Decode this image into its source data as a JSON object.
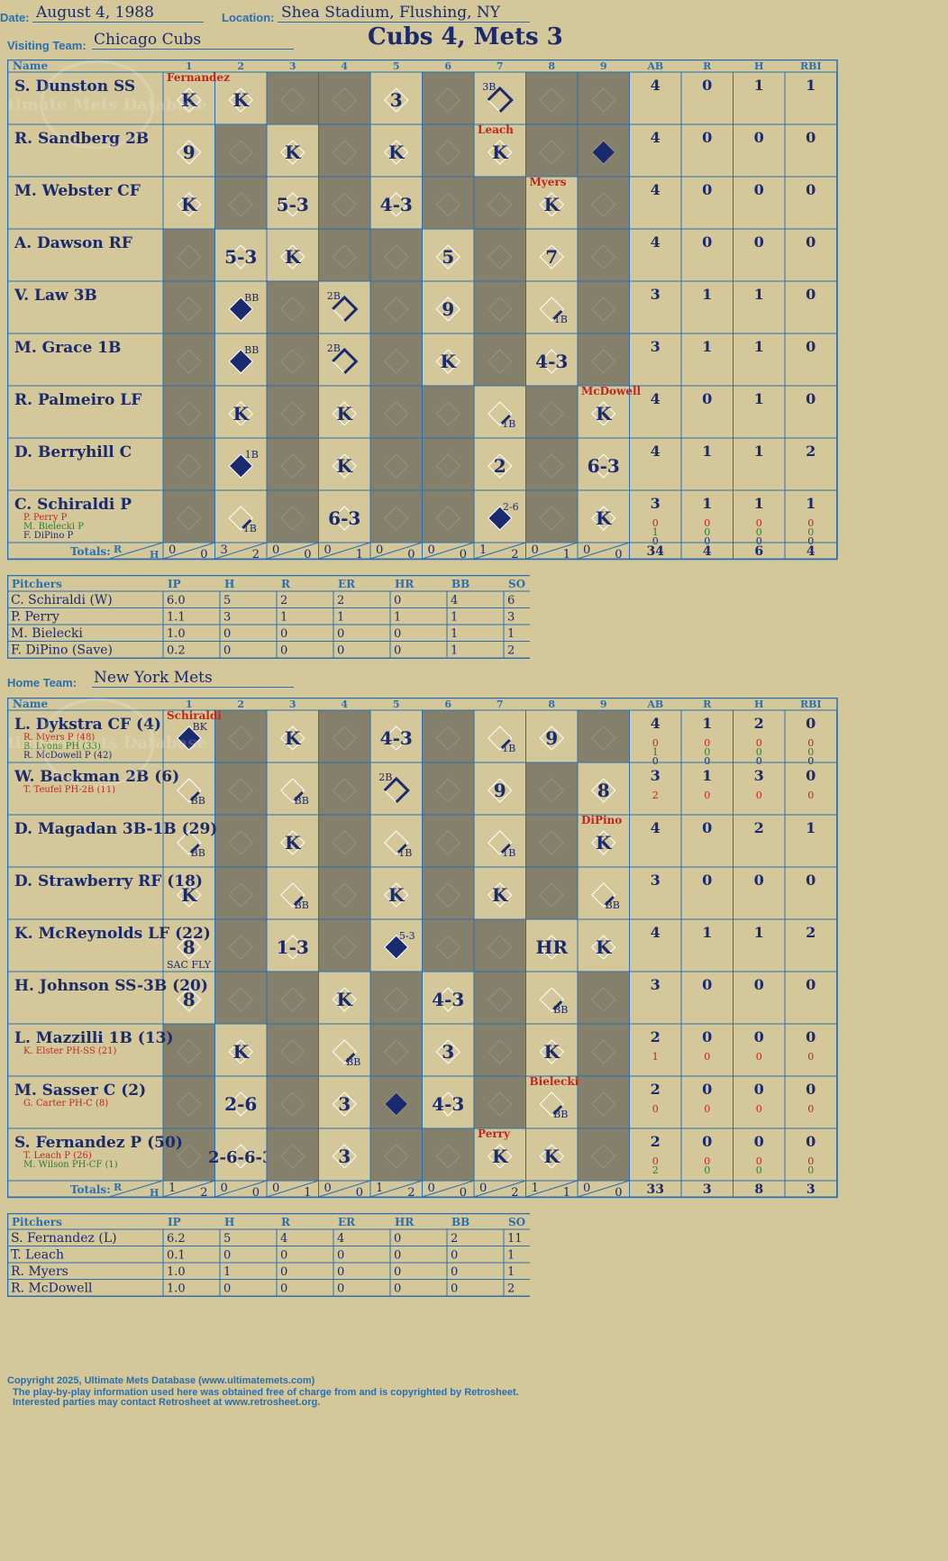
{
  "header": {
    "date_label": "Date:",
    "date": "August 4, 1988",
    "location_label": "Location:",
    "location": "Shea Stadium, Flushing, NY",
    "visiting_label": "Visiting Team:",
    "visiting_team": "Chicago Cubs",
    "home_label": "Home Team:",
    "home_team": "New York Mets",
    "result": "Cubs 4, Mets 3"
  },
  "columns": {
    "name": "Name",
    "innings": [
      "1",
      "2",
      "3",
      "4",
      "5",
      "6",
      "7",
      "8",
      "9"
    ],
    "stats": [
      "AB",
      "R",
      "H",
      "RBI"
    ],
    "totals_label": "Totals:",
    "r_label": "R",
    "h_label": "H"
  },
  "pitcher_columns": [
    "Pitchers",
    "IP",
    "H",
    "R",
    "ER",
    "HR",
    "BB",
    "SO"
  ],
  "visitors": {
    "batters": [
      {
        "name": "S. Dunston SS",
        "subs": [],
        "stats": [
          [
            "4",
            "0",
            "1",
            "1"
          ]
        ]
      },
      {
        "name": "R. Sandberg 2B",
        "subs": [],
        "stats": [
          [
            "4",
            "0",
            "0",
            "0"
          ]
        ]
      },
      {
        "name": "M. Webster CF",
        "subs": [],
        "stats": [
          [
            "4",
            "0",
            "0",
            "0"
          ]
        ]
      },
      {
        "name": "A. Dawson RF",
        "subs": [],
        "stats": [
          [
            "4",
            "0",
            "0",
            "0"
          ]
        ]
      },
      {
        "name": "V. Law 3B",
        "subs": [],
        "stats": [
          [
            "3",
            "1",
            "1",
            "0"
          ]
        ]
      },
      {
        "name": "M. Grace 1B",
        "subs": [],
        "stats": [
          [
            "3",
            "1",
            "1",
            "0"
          ]
        ]
      },
      {
        "name": "R. Palmeiro LF",
        "subs": [],
        "stats": [
          [
            "4",
            "0",
            "1",
            "0"
          ]
        ]
      },
      {
        "name": "D. Berryhill C",
        "subs": [],
        "stats": [
          [
            "4",
            "1",
            "1",
            "2"
          ]
        ]
      },
      {
        "name": "C. Schiraldi P",
        "subs": [
          {
            "name": "P. Perry P",
            "color": "#c0261e"
          },
          {
            "name": "M. Bielecki P",
            "color": "#2e7d32"
          },
          {
            "name": "F. DiPino P",
            "color": "#1a2a6e"
          }
        ],
        "stats": [
          [
            "3",
            "1",
            "1",
            "1"
          ],
          [
            "0",
            "0",
            "0",
            "0"
          ],
          [
            "1",
            "0",
            "0",
            "0"
          ],
          [
            "0",
            "0",
            "0",
            "0"
          ]
        ]
      }
    ],
    "plays": [
      [
        "K",
        "K",
        "",
        "",
        "3",
        "",
        "3B",
        "",
        ""
      ],
      [
        "9",
        "",
        "K",
        "",
        "K",
        "",
        "K",
        "",
        ""
      ],
      [
        "K",
        "",
        "5-3",
        "",
        "4-3",
        "",
        "",
        "K",
        ""
      ],
      [
        "",
        "5-3",
        "K",
        "",
        "",
        "5",
        "",
        "7",
        ""
      ],
      [
        "",
        "BB",
        "",
        "2B",
        "",
        "9",
        "",
        "1B",
        ""
      ],
      [
        "",
        "BB",
        "",
        "2B",
        "",
        "K",
        "",
        "4-3",
        ""
      ],
      [
        "",
        "K",
        "",
        "K",
        "",
        "",
        "1B",
        "",
        "K"
      ],
      [
        "",
        "1B",
        "",
        "K",
        "",
        "",
        "2",
        "",
        "6-3"
      ],
      [
        "",
        "1B",
        "",
        "6-3",
        "",
        "",
        "2-6",
        "",
        "K"
      ]
    ],
    "scored": [
      [
        1,
        8
      ],
      [
        4,
        1
      ],
      [
        5,
        1
      ],
      [
        7,
        1
      ],
      [
        8,
        6
      ]
    ],
    "subs_marks": [
      {
        "row": 0,
        "col": 0,
        "text": "Fernandez"
      },
      {
        "row": 1,
        "col": 6,
        "text": "Leach"
      },
      {
        "row": 2,
        "col": 7,
        "text": "Myers"
      },
      {
        "row": 6,
        "col": 8,
        "text": "McDowell"
      }
    ],
    "totals": [
      [
        "0",
        "0"
      ],
      [
        "3",
        "2"
      ],
      [
        "0",
        "0"
      ],
      [
        "0",
        "1"
      ],
      [
        "0",
        "0"
      ],
      [
        "0",
        "0"
      ],
      [
        "1",
        "2"
      ],
      [
        "0",
        "1"
      ],
      [
        "0",
        "0"
      ]
    ],
    "totals_stats": [
      "34",
      "4",
      "6",
      "4"
    ],
    "pitchers": [
      [
        "C. Schiraldi (W)",
        "6.0",
        "5",
        "2",
        "2",
        "0",
        "4",
        "6"
      ],
      [
        "P. Perry",
        "1.1",
        "3",
        "1",
        "1",
        "1",
        "1",
        "3"
      ],
      [
        "M. Bielecki",
        "1.0",
        "0",
        "0",
        "0",
        "0",
        "1",
        "1"
      ],
      [
        "F. DiPino (Save)",
        "0.2",
        "0",
        "0",
        "0",
        "0",
        "1",
        "2"
      ]
    ]
  },
  "home": {
    "batters": [
      {
        "name": "L. Dykstra CF (4)",
        "subs": [
          {
            "name": "R. Myers P (48)",
            "color": "#c0261e"
          },
          {
            "name": "B. Lyons PH (33)",
            "color": "#2e7d32"
          },
          {
            "name": "R. McDowell P (42)",
            "color": "#1a2a6e"
          }
        ],
        "stats": [
          [
            "4",
            "1",
            "2",
            "0"
          ],
          [
            "0",
            "0",
            "0",
            "0"
          ],
          [
            "1",
            "0",
            "0",
            "0"
          ],
          [
            "0",
            "0",
            "0",
            "0"
          ]
        ]
      },
      {
        "name": "W. Backman 2B (6)",
        "subs": [
          {
            "name": "T. Teufel PH-2B (11)",
            "color": "#c0261e"
          }
        ],
        "stats": [
          [
            "3",
            "1",
            "3",
            "0"
          ],
          [
            "2",
            "0",
            "0",
            "0"
          ]
        ]
      },
      {
        "name": "D. Magadan 3B-1B (29)",
        "subs": [],
        "stats": [
          [
            "4",
            "0",
            "2",
            "1"
          ]
        ]
      },
      {
        "name": "D. Strawberry RF (18)",
        "subs": [],
        "stats": [
          [
            "3",
            "0",
            "0",
            "0"
          ]
        ]
      },
      {
        "name": "K. McReynolds LF (22)",
        "subs": [],
        "stats": [
          [
            "4",
            "1",
            "1",
            "2"
          ]
        ]
      },
      {
        "name": "H. Johnson SS-3B (20)",
        "subs": [],
        "stats": [
          [
            "3",
            "0",
            "0",
            "0"
          ]
        ]
      },
      {
        "name": "L. Mazzilli 1B (13)",
        "subs": [
          {
            "name": "K. Elster PH-SS (21)",
            "color": "#c0261e"
          }
        ],
        "stats": [
          [
            "2",
            "0",
            "0",
            "0"
          ],
          [
            "1",
            "0",
            "0",
            "0"
          ]
        ]
      },
      {
        "name": "M. Sasser C (2)",
        "subs": [
          {
            "name": "G. Carter PH-C (8)",
            "color": "#c0261e"
          }
        ],
        "stats": [
          [
            "2",
            "0",
            "0",
            "0"
          ],
          [
            "0",
            "0",
            "0",
            "0"
          ]
        ]
      },
      {
        "name": "S. Fernandez P (50)",
        "subs": [
          {
            "name": "T. Leach P (26)",
            "color": "#c0261e"
          },
          {
            "name": "M. Wilson PH-CF (1)",
            "color": "#2e7d32"
          }
        ],
        "stats": [
          [
            "2",
            "0",
            "0",
            "0"
          ],
          [
            "0",
            "0",
            "0",
            "0"
          ],
          [
            "2",
            "0",
            "0",
            "0"
          ]
        ]
      }
    ],
    "plays": [
      [
        "BK",
        "",
        "K",
        "",
        "4-3",
        "",
        "1B",
        "9",
        ""
      ],
      [
        "BB",
        "",
        "BB",
        "",
        "2B",
        "",
        "9",
        "",
        "8"
      ],
      [
        "BB",
        "",
        "K",
        "",
        "1B",
        "",
        "1B",
        "",
        "K"
      ],
      [
        "K",
        "",
        "BB",
        "",
        "K",
        "",
        "K",
        "",
        "BB"
      ],
      [
        "8",
        "",
        "1-3",
        "",
        "5-3",
        "",
        "",
        "HR",
        "K"
      ],
      [
        "8",
        "",
        "",
        "K",
        "",
        "4-3",
        "",
        "BB",
        ""
      ],
      [
        "",
        "K",
        "",
        "BB",
        "",
        "3",
        "",
        "K",
        ""
      ],
      [
        "",
        "2-6",
        "",
        "3",
        "",
        "4-3",
        "",
        "BB",
        ""
      ],
      [
        "",
        "2-6-6-3",
        "",
        "3",
        "",
        "",
        "K",
        "K",
        ""
      ]
    ],
    "scored": [
      [
        0,
        0
      ],
      [
        4,
        4
      ],
      [
        7,
        4
      ]
    ],
    "subs_marks": [
      {
        "row": 0,
        "col": 0,
        "text": "Schiraldi"
      },
      {
        "row": 2,
        "col": 8,
        "text": "DiPino"
      },
      {
        "row": 7,
        "col": 7,
        "text": "Bielecki"
      },
      {
        "row": 8,
        "col": 6,
        "text": "Perry"
      }
    ],
    "extra_marks": [
      {
        "row": 4,
        "col": 0,
        "text": "SAC FLY"
      }
    ],
    "totals": [
      [
        "1",
        "2"
      ],
      [
        "0",
        "0"
      ],
      [
        "0",
        "1"
      ],
      [
        "0",
        "0"
      ],
      [
        "1",
        "2"
      ],
      [
        "0",
        "0"
      ],
      [
        "0",
        "2"
      ],
      [
        "1",
        "1"
      ],
      [
        "0",
        "0"
      ]
    ],
    "totals_stats": [
      "33",
      "3",
      "8",
      "3"
    ],
    "pitchers": [
      [
        "S. Fernandez (L)",
        "6.2",
        "5",
        "4",
        "4",
        "0",
        "2",
        "11"
      ],
      [
        "T. Leach",
        "0.1",
        "0",
        "0",
        "0",
        "0",
        "0",
        "1"
      ],
      [
        "R. Myers",
        "1.0",
        "1",
        "0",
        "0",
        "0",
        "0",
        "1"
      ],
      [
        "R. McDowell",
        "1.0",
        "0",
        "0",
        "0",
        "0",
        "0",
        "2"
      ]
    ]
  },
  "footer": {
    "line1": "Copyright 2025, Ultimate Mets Database (www.ultimatemets.com)",
    "line2": "The play-by-play information used here was obtained free of charge from and is copyrighted by Retrosheet.",
    "line3": "Interested parties may contact Retrosheet at www.retrosheet.org."
  },
  "watermark": "Ultimate Mets Database",
  "colors": {
    "ink": "#1a2a6e",
    "grid": "#2a6fb0",
    "paper": "#D4C79A",
    "shade": "#85806B",
    "sub": "#c0261e"
  }
}
